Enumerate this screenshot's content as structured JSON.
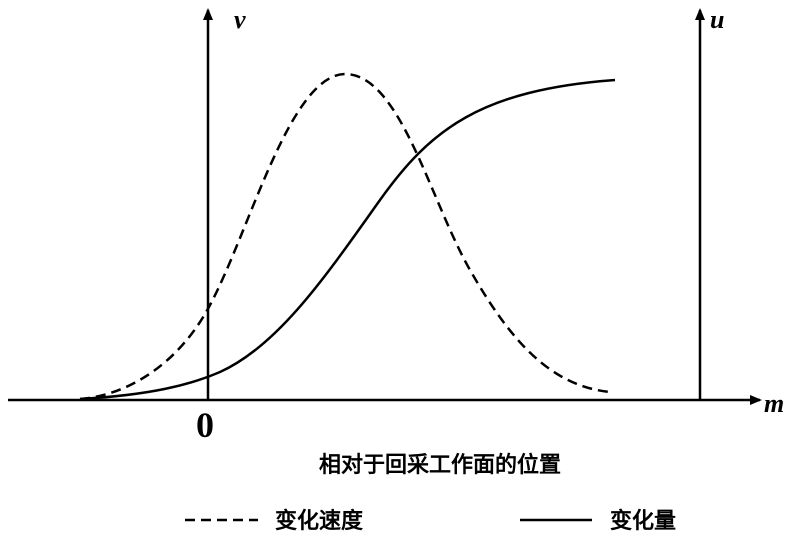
{
  "axes": {
    "left_label": "v",
    "right_label": "u",
    "x_label": "m",
    "origin_label": "0"
  },
  "caption": "相对于回采工作面的位置",
  "legend": [
    {
      "label": "变化速度"
    },
    {
      "label": "变化量"
    }
  ]
}
